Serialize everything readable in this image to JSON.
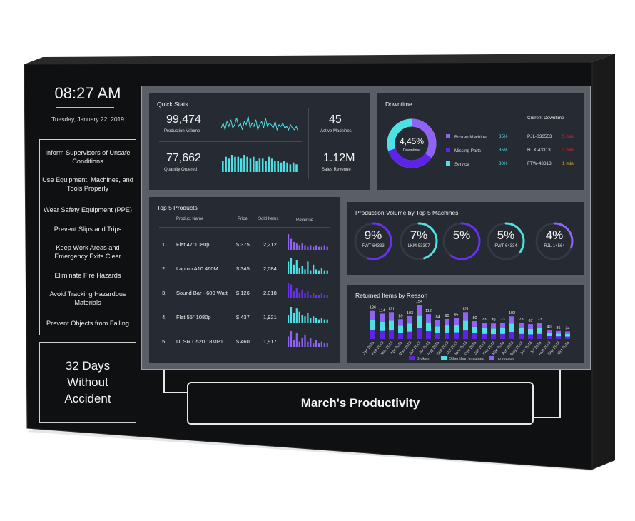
{
  "clock": {
    "time": "08:27 AM",
    "date": "Tuesday, January 22, 2019"
  },
  "rules": [
    "Inform Supervisors of Unsafe Conditions",
    "Use Equipment, Machines, and Tools Properly",
    "Wear Safety Equipment (PPE)",
    "Prevent Slips and Trips",
    "Keep Work Areas and Emergency Exits Clear",
    "Eliminate Fire Hazards",
    "Avoid Tracking Hazardous Materials",
    "Prevent Objects from Falling"
  ],
  "accident": {
    "line1": "32 Days",
    "line2": "Without",
    "line3": "Accident"
  },
  "quick_stats": {
    "title": "Quick Stats",
    "production_volume": "99,474",
    "production_volume_label": "Production Volume",
    "quantity_ordered": "77,662",
    "quantity_ordered_label": "Quantity Ordered",
    "active_machines": "45",
    "active_machines_label": "Active Machines",
    "sales_revenue": "1.12M",
    "sales_revenue_label": "Sales Revenue",
    "sparkline": [
      4,
      7,
      3,
      8,
      5,
      9,
      4,
      6,
      10,
      5,
      7,
      3,
      8,
      6,
      11,
      4,
      7,
      5,
      9,
      3,
      6,
      8,
      4,
      10,
      5,
      7,
      6,
      4,
      8,
      3,
      6,
      5,
      7,
      4,
      5,
      3,
      6,
      4,
      3,
      5,
      2
    ],
    "bars": [
      6,
      8,
      7,
      9,
      8,
      8,
      7,
      9,
      8,
      7,
      8,
      6,
      7,
      7,
      6,
      8,
      7,
      6,
      6,
      5,
      6,
      5,
      4,
      5,
      4
    ]
  },
  "downtime": {
    "title": "Downtime",
    "center_value": "4,45%",
    "center_label": "Downtime",
    "legend": [
      {
        "label": "Broken Machine",
        "value": "35%",
        "color": "#8e63f5"
      },
      {
        "label": "Missing Parts",
        "value": "35%",
        "color": "#5f22e8"
      },
      {
        "label": "Service",
        "value": "30%",
        "color": "#4de1e6"
      }
    ],
    "current_title": "Current Downtime",
    "current": [
      {
        "id": "PJL-036553",
        "time": "5 min",
        "color": "#e03030"
      },
      {
        "id": "HTX-43313",
        "time": "3 min",
        "color": "#e03030"
      },
      {
        "id": "FTW-43313",
        "time": "1 min",
        "color": "#f0c020"
      }
    ]
  },
  "top_products": {
    "title": "Top 5 Products",
    "headers": {
      "name": "Product Name",
      "price": "Price",
      "sold": "Sold Items",
      "revenue": "Revenue"
    },
    "rows": [
      {
        "rank": "1.",
        "name": "Flat 47\"1080p",
        "price": "$ 375",
        "sold": "2,212",
        "color": "#8e63f5",
        "bars": [
          10,
          7,
          5,
          4,
          3,
          4,
          3,
          2,
          3,
          2,
          3,
          2,
          2,
          3,
          2
        ]
      },
      {
        "rank": "2.",
        "name": "Laptop A10 460M",
        "price": "$ 345",
        "sold": "2,084",
        "color": "#4de1e6",
        "bars": [
          8,
          10,
          6,
          9,
          4,
          5,
          3,
          8,
          2,
          6,
          3,
          2,
          4,
          2,
          2
        ]
      },
      {
        "rank": "3.",
        "name": "Sound Bar - 600 Watt",
        "price": "$ 126",
        "sold": "2,018",
        "color": "#6a30f0",
        "bars": [
          9,
          8,
          4,
          6,
          3,
          5,
          3,
          4,
          2,
          3,
          2,
          2,
          3,
          2,
          2
        ]
      },
      {
        "rank": "4.",
        "name": "Flat 55\" 1080p",
        "price": "$ 437",
        "sold": "1,921",
        "color": "#4de1e6",
        "bars": [
          5,
          10,
          6,
          9,
          7,
          5,
          4,
          6,
          3,
          4,
          3,
          2,
          3,
          2,
          2
        ]
      },
      {
        "rank": "5.",
        "name": "DLSR D520 18MP1",
        "price": "$ 460",
        "sold": "1,917",
        "color": "#8e63f5",
        "bars": [
          6,
          9,
          4,
          8,
          3,
          5,
          7,
          3,
          5,
          2,
          4,
          2,
          3,
          2,
          2
        ]
      }
    ]
  },
  "machines": {
    "title": "Production Volume by Top 5 Machines",
    "items": [
      {
        "value": "9%",
        "label": "FWT-64333",
        "color": "#6a30f0",
        "pct": 0.55
      },
      {
        "value": "7%",
        "label": "LKM-53397",
        "color": "#4de1e6",
        "pct": 0.45
      },
      {
        "value": "5%",
        "label": "",
        "color": "#6a30f0",
        "pct": 0.6
      },
      {
        "value": "5%",
        "label": "FWT-64334",
        "color": "#4de1e6",
        "pct": 0.35
      },
      {
        "value": "4%",
        "label": "RJL-14564",
        "color": "#8e63f5",
        "pct": 0.3
      }
    ]
  },
  "returned": {
    "title": "Returned Items by Reason",
    "legend": [
      {
        "label": "Broken",
        "color": "#5f22e8"
      },
      {
        "label": "Other than imagined",
        "color": "#4de1e6"
      },
      {
        "label": "no reason",
        "color": "#8e63f5"
      }
    ]
  },
  "chart_data": {
    "type": "bar",
    "title": "Returned Items by Reason",
    "categories": [
      "Jan 2015",
      "Feb 2015",
      "Mar 2015",
      "Apr 2015",
      "May 2015",
      "Jun 2015",
      "Jul 2015",
      "Aug 2015",
      "Sep 2015",
      "Oct 2015",
      "Nov 2015",
      "Dec 2015",
      "Jan 2016",
      "Feb 2016",
      "Mar 2016",
      "Apr 2016",
      "May 2016",
      "Jun 2016",
      "Jul 2016",
      "Aug 2016",
      "Sep 2016",
      "Oct 2016"
    ],
    "values": [
      126,
      114,
      121,
      89,
      103,
      154,
      112,
      84,
      90,
      95,
      121,
      80,
      73,
      70,
      73,
      102,
      73,
      67,
      73,
      40,
      36,
      34
    ],
    "series": [
      {
        "name": "Broken",
        "values": [
          40,
          36,
          38,
          28,
          33,
          48,
          35,
          27,
          29,
          30,
          38,
          26,
          23,
          22,
          23,
          32,
          23,
          21,
          23,
          13,
          12,
          11
        ]
      },
      {
        "name": "Other than imagined",
        "values": [
          45,
          41,
          44,
          32,
          37,
          56,
          40,
          30,
          32,
          34,
          44,
          29,
          26,
          25,
          26,
          37,
          26,
          24,
          26,
          14,
          13,
          12
        ]
      },
      {
        "name": "no reason",
        "values": [
          41,
          37,
          39,
          29,
          33,
          50,
          37,
          27,
          29,
          31,
          39,
          25,
          24,
          23,
          24,
          33,
          24,
          22,
          24,
          13,
          11,
          11
        ]
      }
    ]
  },
  "banner": {
    "title": "March's Productivity"
  }
}
